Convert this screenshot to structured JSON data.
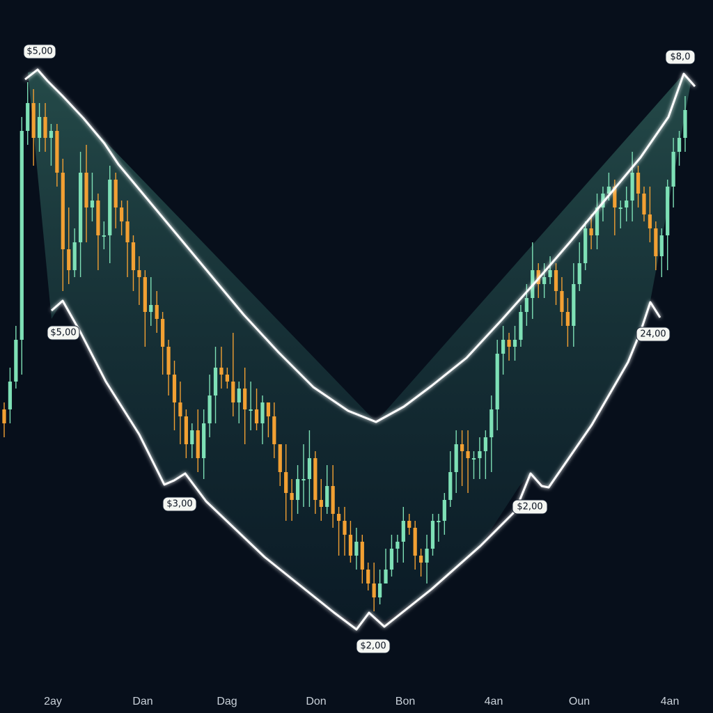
{
  "chart_data": {
    "type": "candlestick",
    "title": "",
    "xlabel": "",
    "ylabel": "",
    "grid": false,
    "x_tick_labels": [
      "2ay",
      "Dan",
      "Dag",
      "Don",
      "Bon",
      "4an",
      "Oun",
      "4an"
    ],
    "annotations": [
      "$5,00",
      "$5,00",
      "$3,00",
      "$2,00",
      "$2,00",
      "$8,0",
      "24,00"
    ],
    "colors": {
      "background": "#070f1b",
      "up": "#7ee0b6",
      "down": "#f2a033",
      "outline": "#ffffff",
      "fill": "#2c5a52"
    },
    "candles": [
      [
        50.0,
        48.0,
        46.0,
        51.0
      ],
      [
        50.0,
        54.0,
        48.0,
        56.0
      ],
      [
        54.0,
        60.0,
        53.0,
        62.0
      ],
      [
        60.0,
        90.0,
        55.0,
        92.0
      ],
      [
        90.0,
        94.0,
        88.0,
        97.0
      ],
      [
        94.0,
        89.0,
        85.0,
        96.0
      ],
      [
        89.0,
        92.0,
        87.0,
        94.0
      ],
      [
        92.0,
        89.0,
        87.0,
        94.0
      ],
      [
        89.0,
        90.0,
        85.0,
        91.0
      ],
      [
        90.0,
        84.0,
        82.0,
        91.0
      ],
      [
        84.0,
        73.0,
        67.0,
        86.0
      ],
      [
        73.0,
        70.0,
        68.0,
        79.0
      ],
      [
        70.0,
        74.0,
        69.0,
        76.0
      ],
      [
        74.0,
        84.0,
        69.0,
        87.0
      ],
      [
        84.0,
        79.0,
        74.0,
        88.0
      ],
      [
        79.0,
        80.0,
        77.0,
        84.0
      ],
      [
        80.0,
        75.0,
        70.0,
        81.0
      ],
      [
        75.0,
        75.0,
        73.0,
        77.0
      ],
      [
        75.0,
        83.0,
        71.0,
        85.0
      ],
      [
        83.0,
        79.0,
        76.0,
        84.0
      ],
      [
        79.0,
        77.0,
        75.0,
        80.0
      ],
      [
        77.0,
        74.0,
        69.0,
        80.0
      ],
      [
        74.0,
        70.0,
        67.0,
        75.0
      ],
      [
        70.0,
        69.0,
        65.0,
        72.0
      ],
      [
        69.0,
        64.0,
        59.0,
        70.0
      ],
      [
        64.0,
        65.0,
        62.0,
        69.0
      ],
      [
        65.0,
        63.0,
        61.0,
        67.0
      ],
      [
        63.0,
        59.0,
        55.0,
        64.0
      ],
      [
        59.0,
        55.0,
        52.0,
        60.0
      ],
      [
        55.0,
        51.0,
        47.0,
        57.0
      ],
      [
        51.0,
        49.0,
        45.0,
        54.0
      ],
      [
        49.0,
        45.0,
        43.0,
        50.0
      ],
      [
        45.0,
        47.0,
        43.0,
        48.0
      ],
      [
        47.0,
        43.0,
        41.0,
        50.0
      ],
      [
        43.0,
        48.0,
        40.0,
        50.0
      ],
      [
        48.0,
        52.0,
        46.0,
        55.0
      ],
      [
        52.0,
        56.0,
        48.0,
        59.0
      ],
      [
        56.0,
        55.0,
        53.0,
        59.0
      ],
      [
        55.0,
        54.0,
        53.0,
        56.0
      ],
      [
        54.0,
        51.0,
        49.0,
        61.0
      ],
      [
        51.0,
        53.0,
        48.0,
        54.0
      ],
      [
        53.0,
        50.0,
        45.0,
        56.0
      ],
      [
        50.0,
        50.0,
        47.0,
        54.0
      ],
      [
        50.0,
        48.0,
        47.0,
        53.0
      ],
      [
        48.0,
        51.0,
        45.0,
        52.0
      ],
      [
        51.0,
        49.0,
        46.0,
        51.0
      ],
      [
        49.0,
        45.0,
        43.0,
        51.0
      ],
      [
        45.0,
        41.0,
        39.0,
        45.0
      ],
      [
        41.0,
        38.0,
        34.0,
        45.0
      ],
      [
        38.0,
        37.0,
        34.0,
        40.0
      ],
      [
        37.0,
        40.0,
        35.0,
        42.0
      ],
      [
        40.0,
        40.0,
        36.0,
        45.0
      ],
      [
        40.0,
        43.0,
        36.0,
        47.0
      ],
      [
        43.0,
        37.0,
        35.0,
        44.0
      ],
      [
        37.0,
        36.0,
        34.0,
        40.0
      ],
      [
        36.0,
        39.0,
        35.0,
        42.0
      ],
      [
        39.0,
        35.0,
        33.0,
        42.0
      ],
      [
        35.0,
        34.0,
        29.0,
        36.0
      ],
      [
        34.0,
        32.0,
        29.0,
        36.0
      ],
      [
        32.0,
        29.0,
        28.0,
        34.0
      ],
      [
        29.0,
        31.0,
        27.0,
        33.0
      ],
      [
        31.0,
        27.0,
        25.0,
        32.0
      ],
      [
        27.0,
        25.0,
        24.0,
        28.0
      ],
      [
        25.0,
        23.0,
        21.0,
        28.0
      ],
      [
        23.0,
        25.0,
        22.0,
        27.0
      ],
      [
        25.0,
        27.0,
        25.0,
        30.0
      ],
      [
        27.0,
        30.0,
        26.0,
        32.0
      ],
      [
        30.0,
        31.0,
        28.0,
        32.0
      ],
      [
        31.0,
        34.0,
        28.0,
        36.0
      ],
      [
        34.0,
        33.0,
        32.0,
        35.0
      ],
      [
        33.0,
        29.0,
        27.0,
        34.0
      ],
      [
        29.0,
        28.0,
        26.0,
        30.0
      ],
      [
        28.0,
        30.0,
        25.0,
        32.0
      ],
      [
        30.0,
        34.0,
        29.0,
        35.0
      ],
      [
        34.0,
        34.0,
        31.0,
        35.0
      ],
      [
        34.0,
        37.0,
        32.0,
        38.0
      ],
      [
        37.0,
        41.0,
        36.0,
        44.0
      ],
      [
        41.0,
        45.0,
        38.0,
        47.0
      ],
      [
        45.0,
        44.0,
        39.0,
        47.0
      ],
      [
        44.0,
        43.0,
        38.0,
        47.0
      ],
      [
        43.0,
        43.0,
        40.0,
        44.0
      ],
      [
        43.0,
        44.0,
        40.0,
        46.0
      ],
      [
        44.0,
        46.0,
        40.0,
        47.0
      ],
      [
        46.0,
        50.0,
        41.0,
        52.0
      ],
      [
        50.0,
        58.0,
        47.0,
        60.0
      ],
      [
        58.0,
        60.0,
        55.0,
        62.0
      ],
      [
        60.0,
        59.0,
        57.0,
        61.0
      ],
      [
        59.0,
        60.0,
        57.0,
        62.0
      ],
      [
        60.0,
        64.0,
        59.0,
        65.0
      ],
      [
        64.0,
        66.0,
        62.0,
        68.0
      ],
      [
        66.0,
        70.0,
        63.0,
        74.0
      ],
      [
        70.0,
        68.0,
        66.0,
        71.0
      ],
      [
        68.0,
        69.0,
        66.0,
        71.0
      ],
      [
        69.0,
        70.0,
        68.0,
        72.0
      ],
      [
        70.0,
        67.0,
        65.0,
        71.0
      ],
      [
        67.0,
        64.0,
        62.0,
        69.0
      ],
      [
        64.0,
        62.0,
        59.0,
        66.0
      ],
      [
        62.0,
        68.0,
        59.0,
        71.0
      ],
      [
        68.0,
        71.0,
        67.0,
        74.0
      ],
      [
        71.0,
        76.0,
        70.0,
        77.0
      ],
      [
        76.0,
        75.0,
        73.0,
        78.0
      ],
      [
        75.0,
        79.0,
        73.0,
        81.0
      ],
      [
        79.0,
        81.0,
        77.0,
        82.0
      ],
      [
        81.0,
        82.0,
        80.0,
        84.0
      ],
      [
        82.0,
        79.0,
        75.0,
        83.0
      ],
      [
        79.0,
        79.0,
        76.0,
        80.0
      ],
      [
        79.0,
        80.0,
        77.0,
        82.0
      ],
      [
        80.0,
        84.0,
        77.0,
        87.0
      ],
      [
        84.0,
        81.0,
        79.0,
        85.0
      ],
      [
        81.0,
        78.0,
        77.0,
        82.0
      ],
      [
        78.0,
        76.0,
        74.0,
        82.0
      ],
      [
        76.0,
        72.0,
        70.0,
        77.0
      ],
      [
        72.0,
        75.0,
        69.0,
        76.0
      ],
      [
        75.0,
        82.0,
        70.0,
        83.0
      ],
      [
        82.0,
        87.0,
        79.0,
        89.0
      ],
      [
        87.0,
        89.0,
        85.0,
        90.0
      ],
      [
        89.0,
        93.0,
        87.0,
        95.0
      ]
    ]
  }
}
